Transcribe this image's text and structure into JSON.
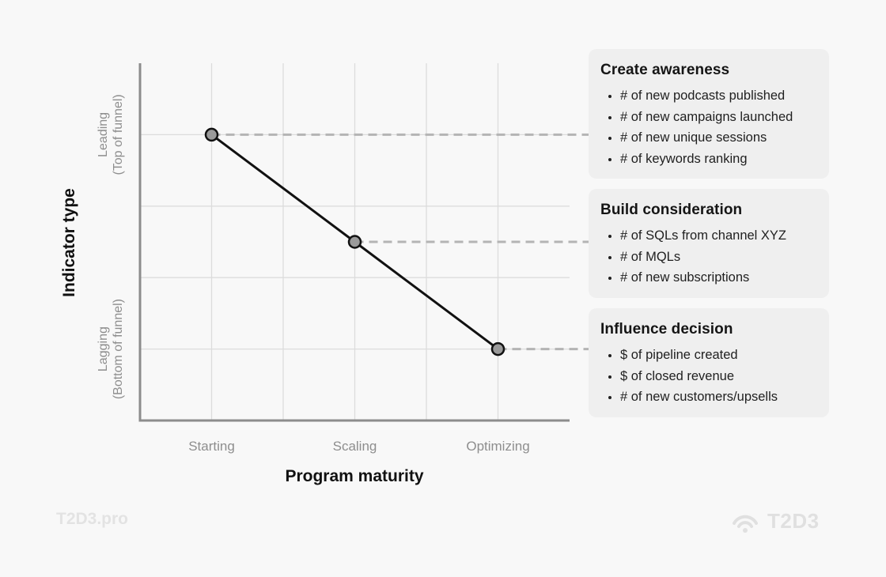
{
  "chart_data": {
    "type": "line",
    "xlabel": "Program maturity",
    "ylabel": "Indicator type",
    "categories": [
      "Starting",
      "Scaling",
      "Optimizing"
    ],
    "y_tick_labels": [
      {
        "lines": [
          "Leading",
          "(Top of funnel)"
        ],
        "value": 4
      },
      {
        "lines": [
          "Lagging",
          "(Bottom of funnel)"
        ],
        "value": 1
      }
    ],
    "ylim": [
      0,
      5
    ],
    "series": [
      {
        "values": [
          4,
          2.5,
          1
        ],
        "color": "#111111",
        "marker_fill": "#9a9a9a"
      }
    ],
    "grid": true
  },
  "cards": [
    {
      "title": "Create awareness",
      "items": [
        "# of new podcasts published",
        "# of new campaigns launched",
        "# of new unique sessions",
        "# of keywords ranking"
      ]
    },
    {
      "title": "Build consideration",
      "items": [
        "# of SQLs from channel XYZ",
        "# of MQLs",
        "# of new subscriptions"
      ]
    },
    {
      "title": "Influence decision",
      "items": [
        "$ of pipeline created",
        "$ of closed revenue",
        "# of new customers/upsells"
      ]
    }
  ],
  "footer": {
    "left_text": "T2D3.pro",
    "brand_name": "T2D3",
    "brand_icon": "wifi-signal-icon"
  },
  "colors": {
    "grid": "#dcdcdc",
    "axis": "#8c8c8c",
    "tick_label": "#8e8e8e",
    "axis_title": "#111111",
    "connector": "#b4b4b4",
    "footer_text": "#e0e0e0"
  }
}
